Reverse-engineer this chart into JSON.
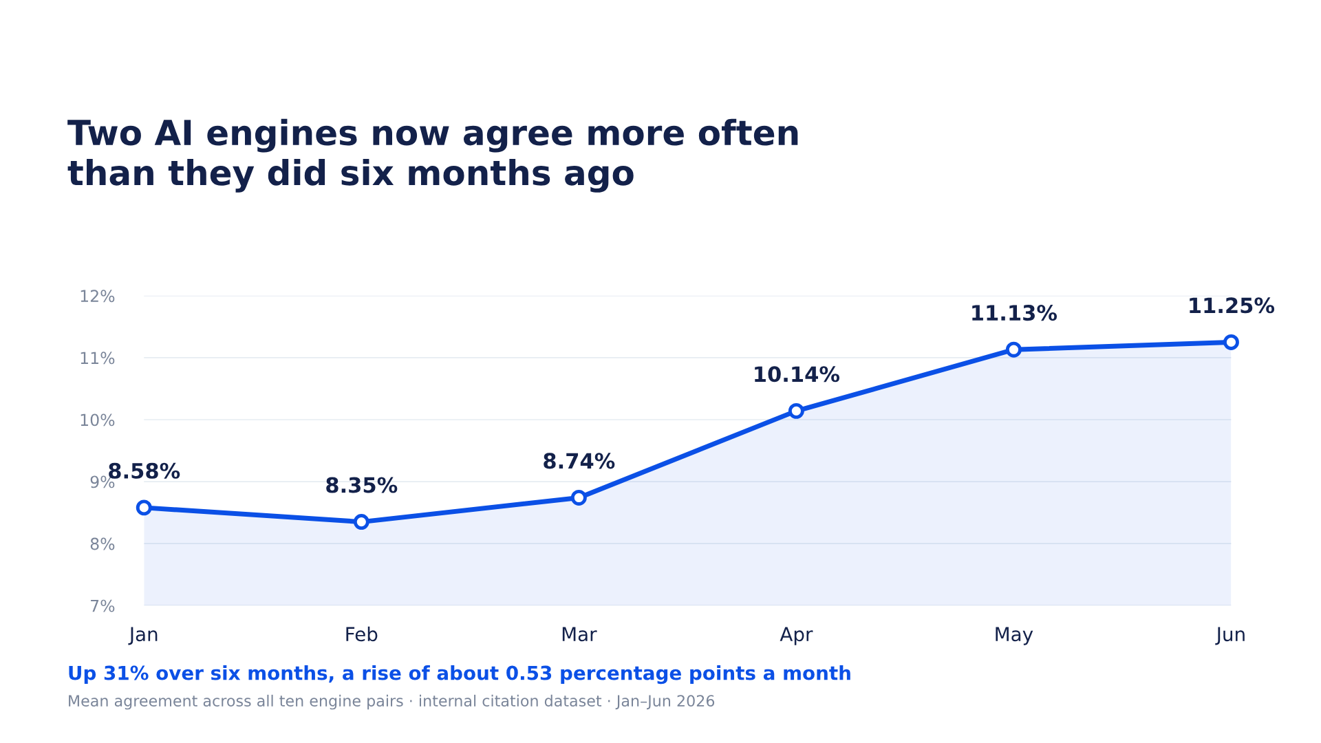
{
  "chart_data": {
    "type": "area",
    "title": "Two AI engines now agree more often\nthan they did six months ago",
    "categories": [
      "Jan",
      "Feb",
      "Mar",
      "Apr",
      "May",
      "Jun"
    ],
    "series": [
      {
        "color": "#0b50e6",
        "values": [
          8.58,
          8.35,
          8.74,
          10.14,
          11.13,
          11.25
        ]
      }
    ],
    "value_labels": [
      "8.58%",
      "8.35%",
      "8.74%",
      "10.14%",
      "11.13%",
      "11.25%"
    ],
    "ylim": [
      7,
      12
    ],
    "yticks": [
      {
        "value": 7,
        "label": "7%"
      },
      {
        "value": 8,
        "label": "8%"
      },
      {
        "value": 9,
        "label": "9%"
      },
      {
        "value": 10,
        "label": "10%"
      },
      {
        "value": 11,
        "label": "11%"
      },
      {
        "value": 12,
        "label": "12%"
      }
    ],
    "grid": "y",
    "marker": "circle",
    "line_style": "solid",
    "annotations": [
      "Up 31% over six months, a rise of about 0.53 percentage points a month",
      "Mean agreement across all ten engine pairs · internal citation dataset · Jan–Jun 2026"
    ]
  }
}
